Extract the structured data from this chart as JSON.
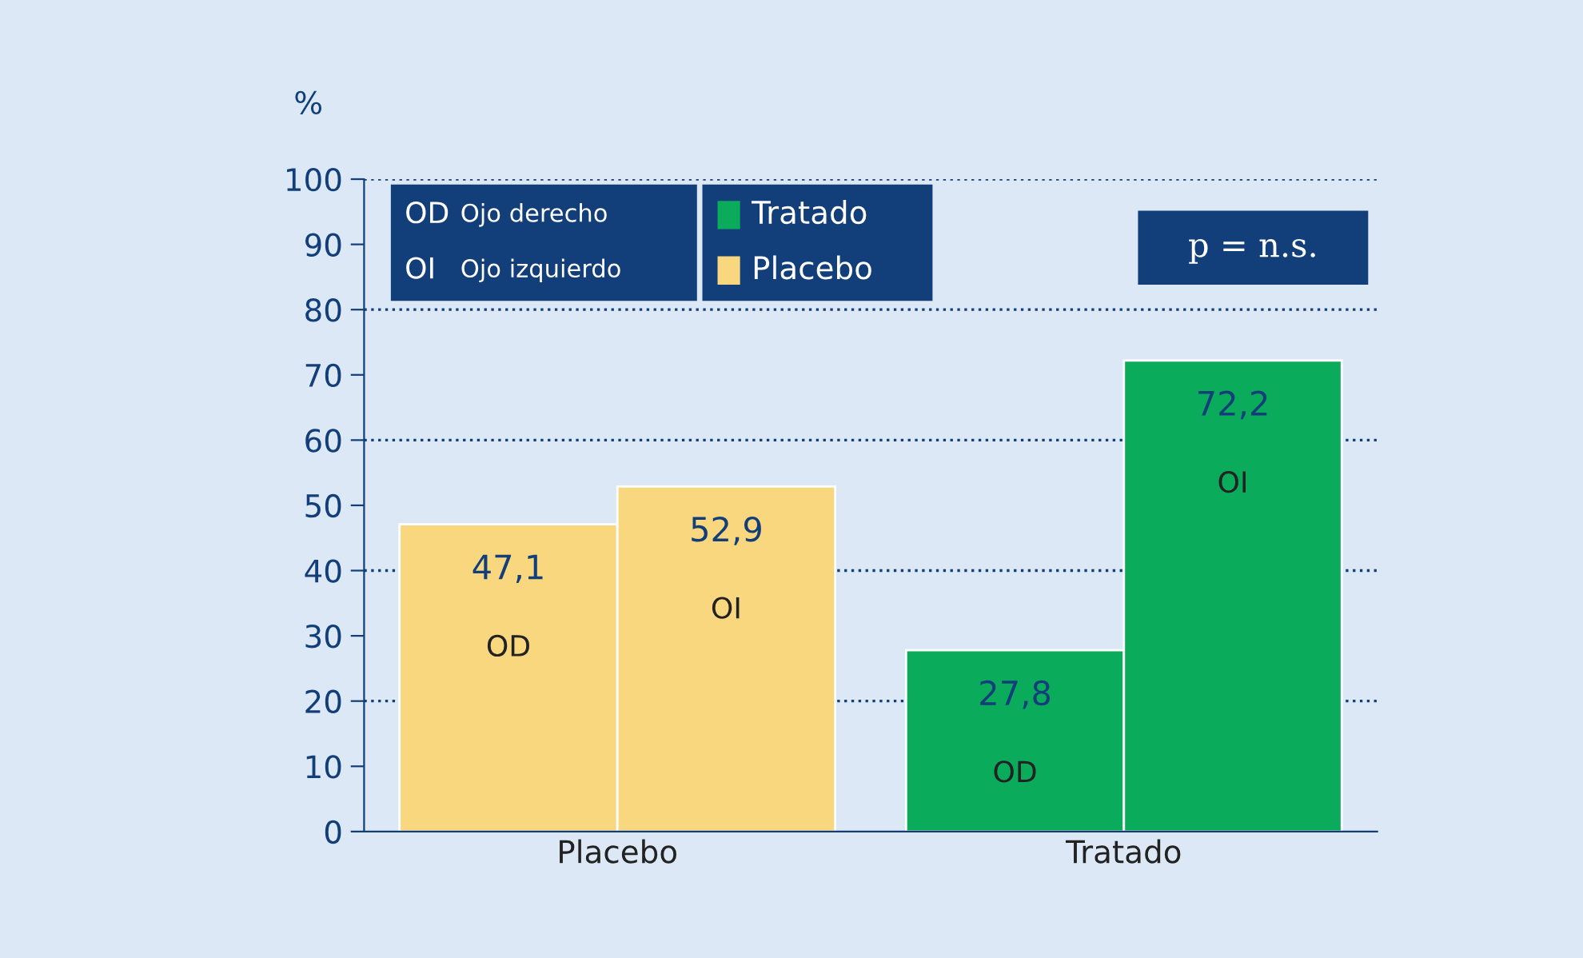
{
  "chart_data": {
    "type": "bar",
    "ylabel": "%",
    "categories": [
      "Placebo",
      "Tratado"
    ],
    "series": [
      {
        "name": "OD",
        "colors": [
          "#f8d77e",
          "#0bab5c"
        ],
        "values": [
          47.1,
          27.8
        ],
        "value_labels": [
          "47,1",
          "27,8"
        ]
      },
      {
        "name": "OI",
        "colors": [
          "#f8d77e",
          "#0bab5c"
        ],
        "values": [
          52.9,
          72.2
        ],
        "value_labels": [
          "52,9",
          "72,2"
        ]
      }
    ],
    "ylim": [
      0,
      100
    ],
    "yticks": [
      0,
      10,
      20,
      30,
      40,
      50,
      60,
      70,
      80,
      90,
      100
    ],
    "grid": "y",
    "annotations": [
      "OD",
      "Ojo derecho",
      "OI",
      "Ojo izquierdo",
      "Tratado",
      "Placebo",
      "p = n.s."
    ]
  }
}
